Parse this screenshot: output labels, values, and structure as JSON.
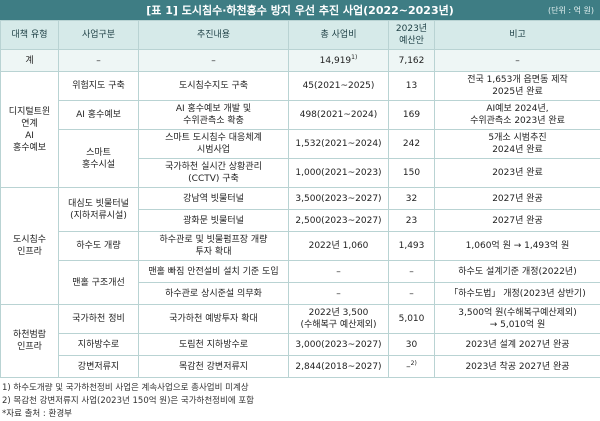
{
  "title": "[표 1] 도시침수·하천홍수 방지 우선 추진 사업(2022~2023년)",
  "unit": "(단위 : 억 원)",
  "table": {
    "header": [
      "대책 유형",
      "사업구분",
      "추진내용",
      "총 사업비",
      "2023년\n예산안",
      "비고"
    ],
    "total": {
      "type": "계",
      "category": "–",
      "content": "–",
      "cost": "14,919",
      "cost_note": "1)",
      "budget": "7,162",
      "note": "–"
    },
    "groups": [
      {
        "type": "디지털트윈\n연계\nAI\n홍수예보",
        "items": [
          {
            "category": "위험지도 구축",
            "entries": [
              {
                "content": "도시침수지도 구축",
                "cost": "45(2021~2025)",
                "budget": "13",
                "note": "전국 1,653개 읍면동 제작\n2025년 완료"
              }
            ]
          },
          {
            "category": "AI 홍수예보",
            "entries": [
              {
                "content": "AI 홍수예보 개발 및\n수위관측소 확충",
                "cost": "498(2021~2024)",
                "budget": "169",
                "note": "AI예보 2024년,\n수위관측소 2023년 완료"
              }
            ]
          },
          {
            "category": "스마트\n홍수시설",
            "entries": [
              {
                "content": "스마트 도시침수 대응체계\n시범사업",
                "cost": "1,532(2021~2024)",
                "budget": "242",
                "note": "5개소 시범추진\n2024년 완료"
              },
              {
                "content": "국가하천 실시간 상황관리\n(CCTV) 구축",
                "cost": "1,000(2021~2023)",
                "budget": "150",
                "note": "2023년 완료"
              }
            ]
          }
        ]
      },
      {
        "type": "도시침수\n인프라",
        "items": [
          {
            "category": "대심도 빗물터널\n(지하저류시설)",
            "entries": [
              {
                "content": "강남역 빗물터널",
                "cost": "3,500(2023~2027)",
                "budget": "32",
                "note": "2027년 완공"
              },
              {
                "content": "광화문 빗물터널",
                "cost": "2,500(2023~2027)",
                "budget": "23",
                "note": "2027년 완공"
              }
            ]
          },
          {
            "category": "하수도 개량",
            "entries": [
              {
                "content": "하수관로 및 빗물펌프장 개량\n투자 확대",
                "cost": "2022년 1,060",
                "budget": "1,493",
                "note": "1,060억 원 → 1,493억 원"
              }
            ]
          },
          {
            "category": "맨홀 구조개선",
            "entries": [
              {
                "content": "맨홀 빠짐 안전설비 설치 기준 도입",
                "cost": "–",
                "budget": "–",
                "note": "하수도 설계기준 개정(2022년)"
              },
              {
                "content": "하수관로 상시준설 의무화",
                "cost": "–",
                "budget": "–",
                "note": "「하수도법」 개정(2023년 상반기)"
              }
            ]
          }
        ]
      },
      {
        "type": "하천범람\n인프라",
        "items": [
          {
            "category": "국가하천 정비",
            "entries": [
              {
                "content": "국가하천 예방투자 확대",
                "cost": "2022년 3,500\n(수해복구 예산제외)",
                "budget": "5,010",
                "note": "3,500억 원(수해복구예산제외)\n→ 5,010억 원"
              }
            ]
          },
          {
            "category": "지하방수로",
            "entries": [
              {
                "content": "도림천 지하방수로",
                "cost": "3,000(2023~2027)",
                "budget": "30",
                "note": "2023년 설계 2027년 완공"
              }
            ]
          },
          {
            "category": "강변저류지",
            "entries": [
              {
                "content": "목감천 강변저류지",
                "cost": "2,844(2018~2027)",
                "budget": "–",
                "budget_note": "2)",
                "note": "2023년 착공 2027년 완공"
              }
            ]
          }
        ]
      }
    ]
  },
  "footnotes": [
    "1) 하수도개량 및 국가하천정비 사업은 계속사업으로 총사업비 미계상",
    "2) 목감천 강변저류지 사업(2023년 150억 원)은 국가하천정비에 포함",
    "*자료 출처 : 환경부"
  ]
}
